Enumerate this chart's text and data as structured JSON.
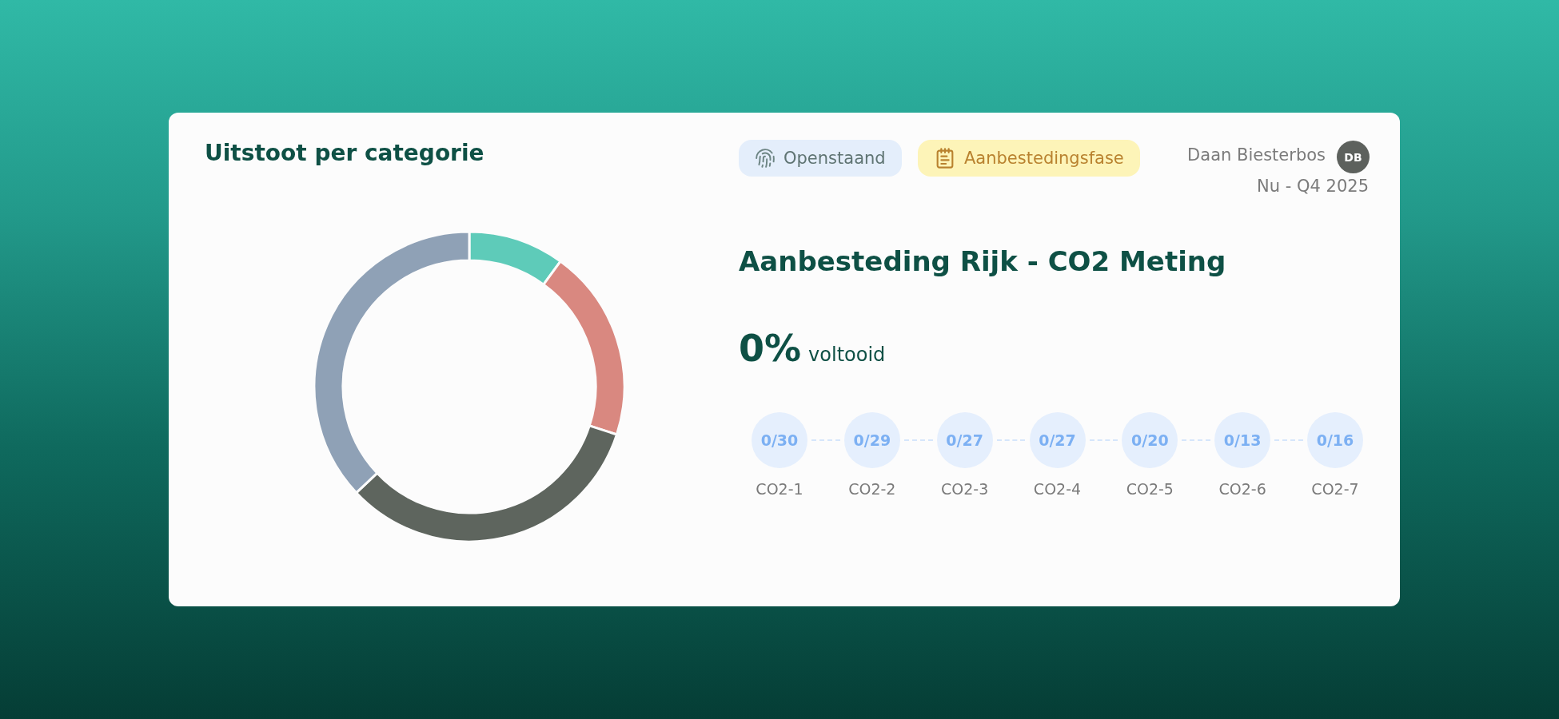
{
  "chart_data": [
    {
      "type": "donut",
      "title": "Uitstoot per categorie",
      "categories": [
        null,
        null,
        null,
        null
      ],
      "values": [
        10,
        20,
        33,
        37
      ],
      "colors": [
        "#5ecbb9",
        "#d98880",
        "#5e655e",
        "#8fa1b6"
      ]
    },
    {
      "type": "other",
      "title": "Aanbesteding Rijk - CO2 Meting",
      "annotations": [
        "Openstaand",
        "Aanbestedingsfase",
        "Daan Biesterbos",
        "DB",
        "Nu - Q4 2025",
        "0%",
        "voltooid",
        "0/30",
        "0/29",
        "0/27",
        "0/27",
        "0/20",
        "0/13",
        "0/16",
        "CO2-1",
        "CO2-2",
        "CO2-3",
        "CO2-4",
        "CO2-5",
        "CO2-6",
        "CO2-7"
      ]
    }
  ]
}
